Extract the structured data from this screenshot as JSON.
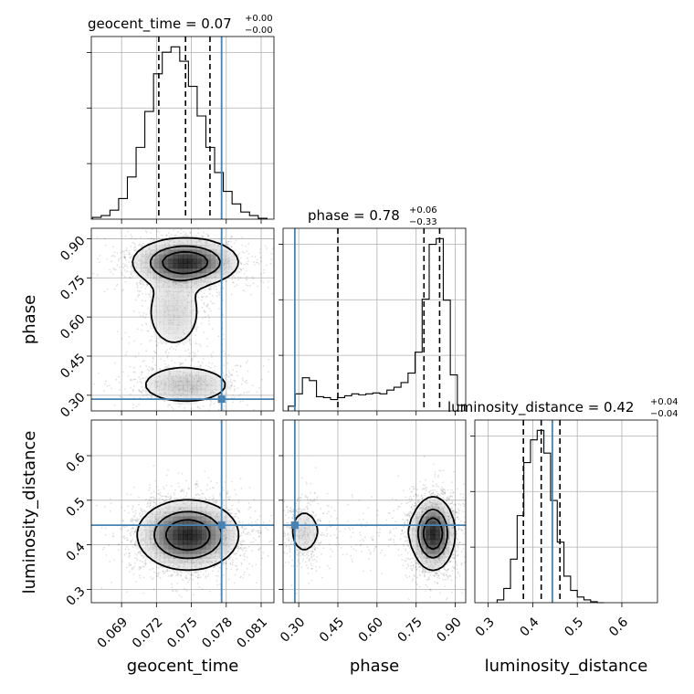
{
  "figure": {
    "type": "corner_plot",
    "truth_color": "#4682b4",
    "quantile_style": "dashed",
    "grid": true
  },
  "parameters": [
    {
      "key": "geocent_time",
      "label": "geocent_time",
      "title_prefix": "geocent_time = 0.07",
      "title_sup": "+0.00",
      "title_sub": "−0.00",
      "median": 0.07,
      "err_plus": 0.0,
      "err_minus": 0.0,
      "range": [
        0.0664,
        0.0821
      ],
      "ticks": [
        0.069,
        0.072,
        0.075,
        0.078,
        0.081
      ],
      "tick_labels": [
        "0.069",
        "0.072",
        "0.075",
        "0.078",
        "0.081"
      ],
      "quantiles": [
        0.0722,
        0.0745,
        0.0766
      ],
      "truth": 0.0776
    },
    {
      "key": "phase",
      "label": "phase",
      "title_prefix": "phase = 0.78",
      "title_sup": "+0.06",
      "title_sub": "−0.33",
      "median": 0.78,
      "err_plus": 0.06,
      "err_minus": 0.33,
      "range": [
        0.24,
        0.94
      ],
      "ticks": [
        0.3,
        0.45,
        0.6,
        0.75,
        0.9
      ],
      "tick_labels": [
        "0.30",
        "0.45",
        "0.60",
        "0.75",
        "0.90"
      ],
      "quantiles": [
        0.45,
        0.78,
        0.84
      ],
      "truth": 0.285
    },
    {
      "key": "luminosity_distance",
      "label": "luminosity_distance",
      "title_prefix": "luminosity_distance = 0.42",
      "title_sup": "+0.04",
      "title_sub": "−0.04",
      "median": 0.42,
      "err_plus": 0.04,
      "err_minus": 0.04,
      "range": [
        0.27,
        0.68
      ],
      "ticks": [
        0.3,
        0.4,
        0.5,
        0.6
      ],
      "tick_labels": [
        "0.3",
        "0.4",
        "0.5",
        "0.6"
      ],
      "quantiles": [
        0.379,
        0.419,
        0.461
      ],
      "truth": 0.444
    }
  ],
  "chart_data": [
    {
      "type": "histogram",
      "name": "geocent_time marginal",
      "param": "geocent_time",
      "bin_edges": [
        0.0665,
        0.06725,
        0.068,
        0.06875,
        0.0695,
        0.07025,
        0.071,
        0.07175,
        0.0725,
        0.07325,
        0.074,
        0.07475,
        0.0755,
        0.07625,
        0.077,
        0.07775,
        0.0785,
        0.07925,
        0.08,
        0.08075,
        0.0815
      ],
      "counts": [
        2,
        4,
        10,
        23,
        47,
        80,
        120,
        162,
        186,
        192,
        176,
        148,
        115,
        80,
        52,
        31,
        17,
        8,
        4,
        1
      ],
      "quantiles": [
        0.0722,
        0.0745,
        0.0766
      ],
      "truth": 0.0776
    },
    {
      "type": "histogram",
      "name": "phase marginal",
      "param": "phase",
      "bin_edges": [
        0.26,
        0.287,
        0.314,
        0.341,
        0.368,
        0.395,
        0.422,
        0.449,
        0.476,
        0.503,
        0.53,
        0.557,
        0.584,
        0.611,
        0.638,
        0.665,
        0.692,
        0.719,
        0.746,
        0.773,
        0.8,
        0.827,
        0.854,
        0.881,
        0.908,
        0.935
      ],
      "counts": [
        5,
        18,
        35,
        32,
        15,
        14,
        12,
        14,
        16,
        18,
        17,
        18,
        19,
        18,
        22,
        25,
        30,
        40,
        62,
        118,
        176,
        182,
        117,
        38,
        6
      ],
      "quantiles": [
        0.45,
        0.78,
        0.84
      ],
      "truth": 0.285
    },
    {
      "type": "histogram",
      "name": "luminosity_distance marginal",
      "param": "luminosity_distance",
      "bin_edges": [
        0.32,
        0.335,
        0.35,
        0.365,
        0.38,
        0.395,
        0.41,
        0.425,
        0.44,
        0.455,
        0.47,
        0.485,
        0.5,
        0.515,
        0.53,
        0.545,
        0.56
      ],
      "counts": [
        3,
        15,
        46,
        92,
        148,
        172,
        182,
        158,
        108,
        64,
        28,
        13,
        6,
        3,
        1,
        0
      ],
      "quantiles": [
        0.379,
        0.419,
        0.461
      ],
      "truth": 0.444
    },
    {
      "type": "density_contour",
      "name": "phase vs geocent_time",
      "x": "geocent_time",
      "y": "phase",
      "truth": [
        0.0776,
        0.285
      ],
      "modes": [
        {
          "cx": 0.0745,
          "cy": 0.81,
          "sx": 0.0022,
          "sy": 0.045,
          "w": 1.0
        },
        {
          "cx": 0.0735,
          "cy": 0.62,
          "sx": 0.0015,
          "sy": 0.09,
          "w": 0.28
        },
        {
          "cx": 0.0745,
          "cy": 0.34,
          "sx": 0.0022,
          "sy": 0.04,
          "w": 0.4
        }
      ],
      "levels": [
        0.118,
        0.393,
        0.675
      ]
    },
    {
      "type": "density_contour",
      "name": "luminosity_distance vs geocent_time",
      "x": "geocent_time",
      "y": "luminosity_distance",
      "truth": [
        0.0776,
        0.444
      ],
      "modes": [
        {
          "cx": 0.0747,
          "cy": 0.422,
          "sx": 0.0021,
          "sy": 0.038,
          "w": 1.0
        }
      ],
      "levels": [
        0.118,
        0.393,
        0.675
      ]
    },
    {
      "type": "density_contour",
      "name": "luminosity_distance vs phase",
      "x": "phase",
      "y": "luminosity_distance",
      "truth": [
        0.285,
        0.444
      ],
      "modes": [
        {
          "cx": 0.815,
          "cy": 0.425,
          "sx": 0.04,
          "sy": 0.04,
          "w": 1.0
        },
        {
          "cx": 0.32,
          "cy": 0.43,
          "sx": 0.035,
          "sy": 0.035,
          "w": 0.22
        },
        {
          "cx": 0.56,
          "cy": 0.43,
          "sx": 0.15,
          "sy": 0.03,
          "w": 0.1
        }
      ],
      "levels": [
        0.118,
        0.393,
        0.675
      ]
    }
  ]
}
